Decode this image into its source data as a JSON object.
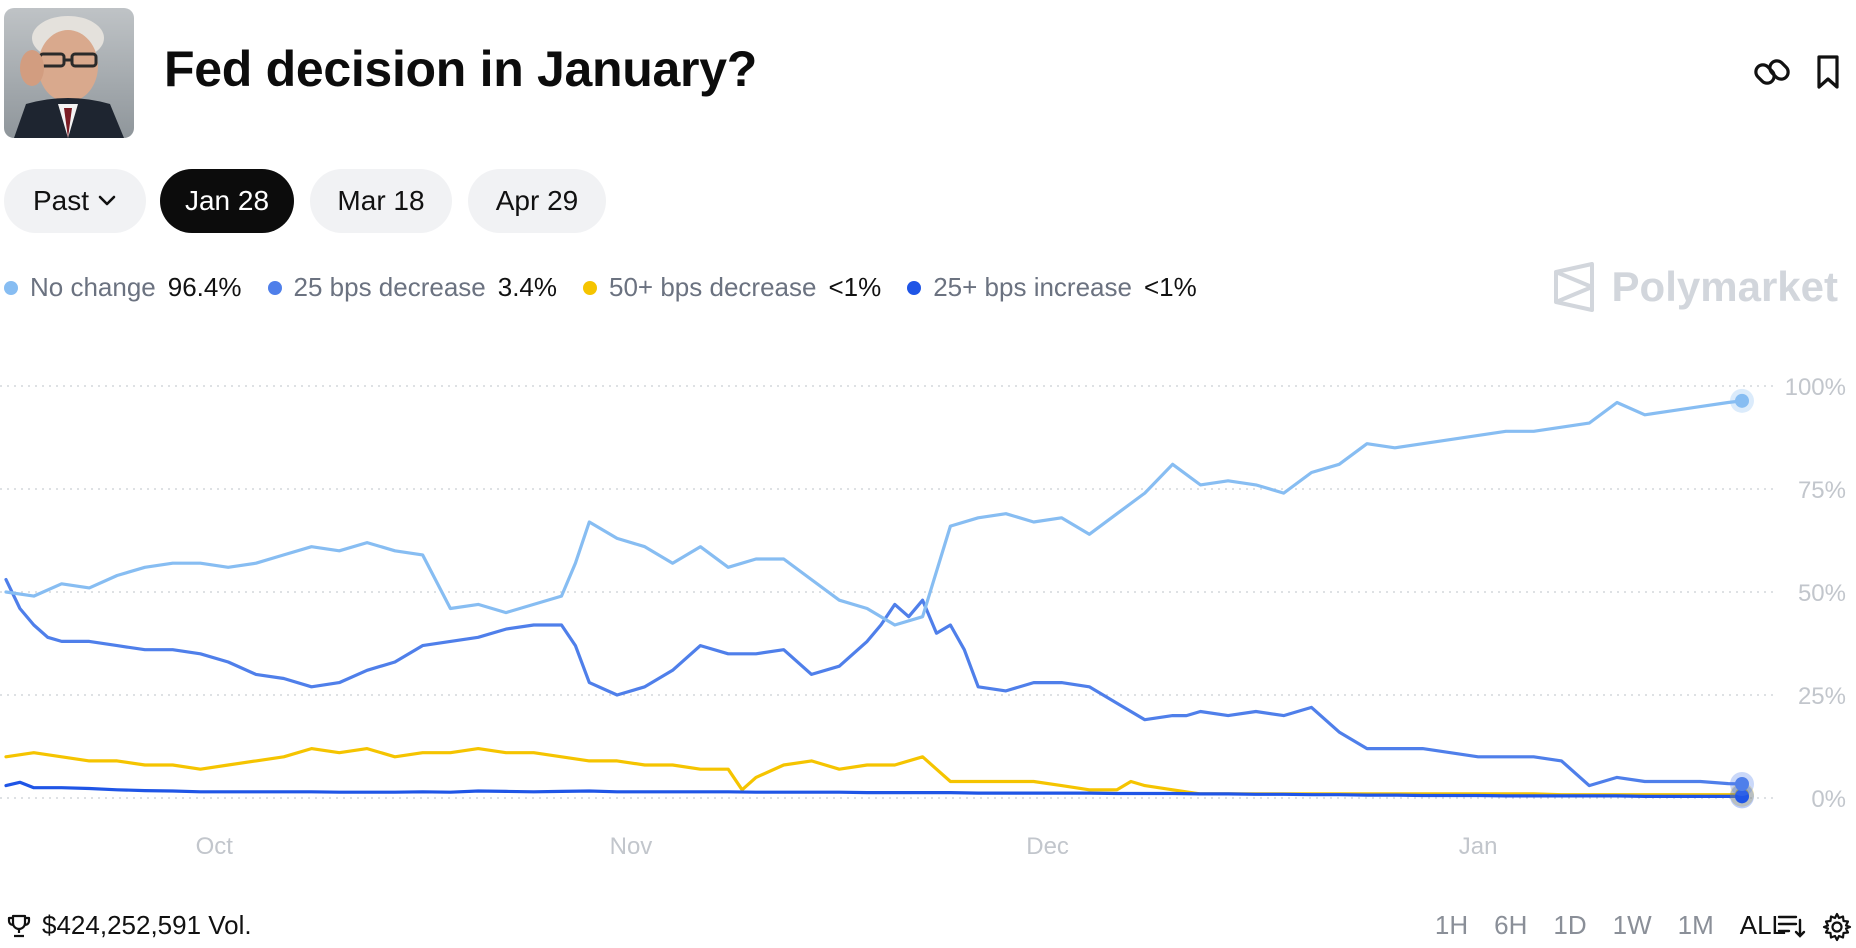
{
  "header": {
    "title": "Fed decision in January?",
    "link_icon": "link-icon",
    "bookmark_icon": "bookmark-icon"
  },
  "date_pills": [
    {
      "label": "Past",
      "dropdown": true,
      "active": false
    },
    {
      "label": "Jan 28",
      "active": true
    },
    {
      "label": "Mar 18",
      "active": false
    },
    {
      "label": "Apr 29",
      "active": false
    }
  ],
  "legend": [
    {
      "name": "No change",
      "value": "96.4%",
      "color": "#87bdf2"
    },
    {
      "name": "25 bps decrease",
      "value": "3.4%",
      "color": "#4f7fea"
    },
    {
      "name": "50+ bps decrease",
      "value": "<1%",
      "color": "#f5c400"
    },
    {
      "name": "25+ bps increase",
      "value": "<1%",
      "color": "#1f55e6"
    }
  ],
  "brand": {
    "name": "Polymarket"
  },
  "footer": {
    "volume": "$424,252,591 Vol.",
    "ranges": [
      "1H",
      "6H",
      "1D",
      "1W",
      "1M",
      "ALL"
    ],
    "active_range": "ALL",
    "filter_icon": "filter-lines-icon",
    "settings_icon": "gear-icon"
  },
  "chart_data": {
    "type": "line",
    "x_ticks": [
      "Oct",
      "Nov",
      "Dec",
      "Jan"
    ],
    "x_tick_days": [
      15,
      45,
      75,
      106
    ],
    "x_range": [
      0,
      125
    ],
    "y_ticks": [
      "100%",
      "75%",
      "50%",
      "25%",
      "0%"
    ],
    "y_tick_values": [
      100,
      75,
      50,
      25,
      0
    ],
    "ylim": [
      0,
      100
    ],
    "grid": true,
    "series": [
      {
        "name": "No change",
        "color": "#87bdf2",
        "x": [
          0,
          2,
          4,
          6,
          8,
          10,
          12,
          14,
          16,
          18,
          20,
          22,
          24,
          26,
          28,
          30,
          32,
          34,
          36,
          38,
          40,
          41,
          42,
          44,
          46,
          48,
          50,
          52,
          54,
          56,
          58,
          60,
          62,
          64,
          66,
          68,
          70,
          72,
          74,
          76,
          78,
          80,
          82,
          84,
          86,
          88,
          90,
          92,
          94,
          96,
          98,
          100,
          102,
          104,
          106,
          108,
          110,
          112,
          114,
          116,
          118,
          120,
          122,
          124,
          125
        ],
        "y": [
          50,
          49,
          52,
          51,
          54,
          56,
          57,
          57,
          56,
          57,
          59,
          61,
          60,
          62,
          60,
          59,
          46,
          47,
          45,
          47,
          49,
          57,
          67,
          63,
          61,
          57,
          61,
          56,
          58,
          58,
          53,
          48,
          46,
          42,
          44,
          66,
          68,
          69,
          67,
          68,
          64,
          69,
          74,
          81,
          76,
          77,
          76,
          74,
          79,
          81,
          86,
          85,
          86,
          87,
          88,
          89,
          89,
          90,
          91,
          96,
          93,
          94,
          95,
          96,
          96.4
        ]
      },
      {
        "name": "25 bps decrease",
        "color": "#4f7fea",
        "x": [
          0,
          1,
          2,
          3,
          4,
          6,
          8,
          10,
          12,
          14,
          16,
          18,
          20,
          22,
          24,
          26,
          28,
          30,
          32,
          34,
          36,
          38,
          40,
          41,
          42,
          44,
          46,
          48,
          50,
          52,
          54,
          56,
          58,
          60,
          62,
          63,
          64,
          65,
          66,
          67,
          68,
          69,
          70,
          72,
          74,
          76,
          78,
          80,
          82,
          84,
          85,
          86,
          88,
          90,
          92,
          94,
          96,
          98,
          100,
          102,
          104,
          106,
          108,
          110,
          112,
          114,
          116,
          118,
          120,
          122,
          124,
          125
        ],
        "y": [
          53,
          46,
          42,
          39,
          38,
          38,
          37,
          36,
          36,
          35,
          33,
          30,
          29,
          27,
          28,
          31,
          33,
          37,
          38,
          39,
          41,
          42,
          42,
          37,
          28,
          25,
          27,
          31,
          37,
          35,
          35,
          36,
          30,
          32,
          38,
          42,
          47,
          44,
          48,
          40,
          42,
          36,
          27,
          26,
          28,
          28,
          27,
          23,
          19,
          20,
          20,
          21,
          20,
          21,
          20,
          22,
          16,
          12,
          12,
          12,
          11,
          10,
          10,
          10,
          9,
          3,
          5,
          4,
          4,
          4,
          3.5,
          3.4
        ]
      },
      {
        "name": "50+ bps decrease",
        "color": "#f5c400",
        "x": [
          0,
          2,
          4,
          6,
          8,
          10,
          12,
          14,
          16,
          18,
          20,
          22,
          24,
          26,
          28,
          30,
          32,
          34,
          36,
          38,
          40,
          42,
          44,
          46,
          48,
          50,
          52,
          53,
          54,
          56,
          58,
          60,
          62,
          64,
          66,
          67,
          68,
          70,
          72,
          74,
          76,
          78,
          80,
          81,
          82,
          84,
          86,
          88,
          90,
          92,
          94,
          96,
          98,
          100,
          102,
          104,
          106,
          108,
          110,
          112,
          114,
          116,
          118,
          120,
          122,
          124,
          125
        ],
        "y": [
          10,
          11,
          10,
          9,
          9,
          8,
          8,
          7,
          8,
          9,
          10,
          12,
          11,
          12,
          10,
          11,
          11,
          12,
          11,
          11,
          10,
          9,
          9,
          8,
          8,
          7,
          7,
          2,
          5,
          8,
          9,
          7,
          8,
          8,
          10,
          7,
          4,
          4,
          4,
          4,
          3,
          2,
          2,
          4,
          3,
          2,
          1,
          1,
          1,
          1,
          1,
          1,
          1,
          1,
          1,
          1,
          1,
          1,
          1,
          0.8,
          0.8,
          0.8,
          0.8,
          0.8,
          0.8,
          0.8,
          0.8
        ]
      },
      {
        "name": "25+ bps increase",
        "color": "#1f55e6",
        "x": [
          0,
          1,
          2,
          4,
          6,
          8,
          10,
          12,
          14,
          16,
          18,
          20,
          22,
          24,
          26,
          28,
          30,
          32,
          34,
          36,
          38,
          40,
          42,
          44,
          46,
          48,
          50,
          52,
          54,
          56,
          58,
          60,
          62,
          64,
          66,
          68,
          70,
          72,
          74,
          76,
          78,
          80,
          82,
          84,
          86,
          88,
          90,
          92,
          94,
          96,
          98,
          100,
          102,
          104,
          106,
          108,
          110,
          112,
          114,
          116,
          118,
          120,
          122,
          124,
          125
        ],
        "y": [
          3,
          3.8,
          2.5,
          2.5,
          2.3,
          2,
          1.8,
          1.7,
          1.5,
          1.5,
          1.5,
          1.5,
          1.5,
          1.4,
          1.4,
          1.4,
          1.5,
          1.4,
          1.7,
          1.6,
          1.5,
          1.6,
          1.7,
          1.5,
          1.5,
          1.5,
          1.5,
          1.5,
          1.4,
          1.4,
          1.4,
          1.4,
          1.3,
          1.3,
          1.3,
          1.3,
          1.2,
          1.2,
          1.2,
          1.2,
          1.2,
          1.1,
          1.1,
          1.1,
          1,
          1,
          0.9,
          0.9,
          0.8,
          0.8,
          0.7,
          0.7,
          0.6,
          0.6,
          0.6,
          0.5,
          0.5,
          0.5,
          0.5,
          0.5,
          0.4,
          0.4,
          0.4,
          0.4,
          0.4
        ]
      }
    ]
  }
}
